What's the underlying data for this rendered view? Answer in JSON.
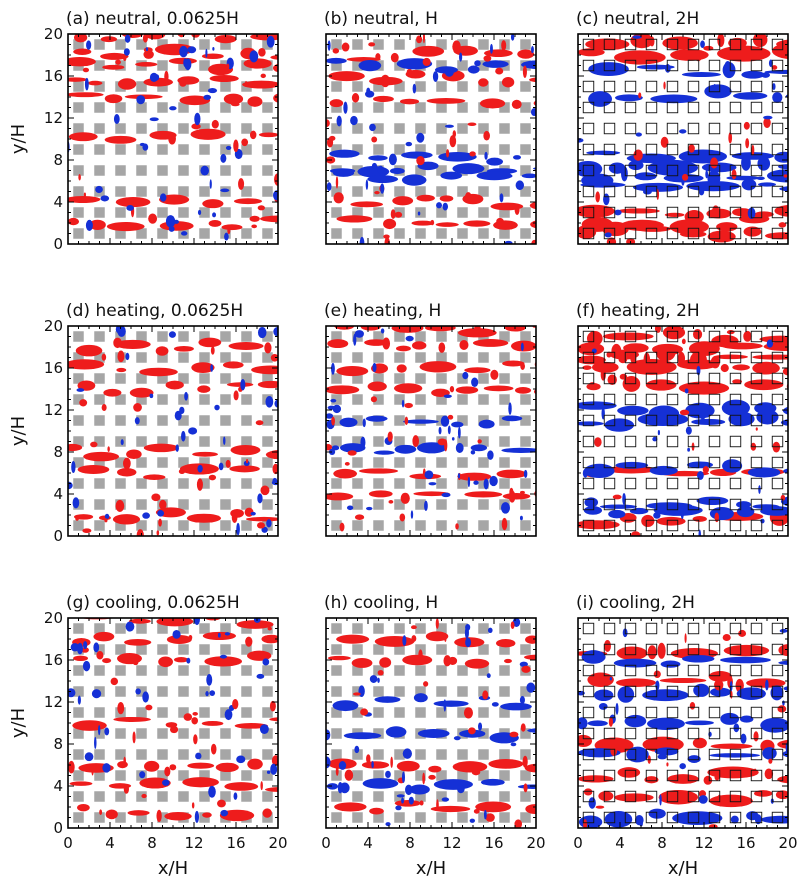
{
  "figure": {
    "colors": {
      "positive_structures": "#ee1c1c",
      "negative_structures": "#1530d6",
      "buildings_filled": "#a6a6a6",
      "buildings_outline": "#111111"
    }
  },
  "chart_data": [
    {
      "type": "heatmap",
      "title": "(a) neutral, 0.0625H",
      "xlabel": "",
      "ylabel": "y/H",
      "xlim": [
        0,
        20
      ],
      "ylim": [
        0,
        20
      ],
      "xticks": [],
      "yticks": [
        "0",
        "4",
        "8",
        "12",
        "16",
        "20"
      ],
      "building_style": "filled",
      "red_bands_y": [
        19.8,
        18.2,
        17,
        15.4,
        13.9,
        10,
        4,
        2
      ],
      "blue_bands_y": [],
      "grid": false
    },
    {
      "type": "heatmap",
      "title": "(b) neutral, H",
      "xlabel": "",
      "ylabel": "",
      "xlim": [
        0,
        20
      ],
      "ylim": [
        0,
        20
      ],
      "xticks": [],
      "yticks": [],
      "building_style": "filled",
      "red_bands_y": [
        18,
        15.8,
        13.5,
        4,
        2
      ],
      "blue_bands_y": [
        17,
        8.2,
        7,
        6.5
      ],
      "grid": false
    },
    {
      "type": "heatmap",
      "title": "(c) neutral, 2H",
      "xlabel": "",
      "ylabel": "",
      "xlim": [
        0,
        20
      ],
      "ylim": [
        0,
        20
      ],
      "xticks": [],
      "yticks": [],
      "building_style": "outline",
      "red_bands_y": [
        19,
        18,
        3,
        2,
        1
      ],
      "blue_bands_y": [
        16.5,
        14.2,
        8.3,
        7.5,
        6.5,
        5.5
      ],
      "grid": false
    },
    {
      "type": "heatmap",
      "title": "(d) heating, 0.0625H",
      "xlabel": "",
      "ylabel": "y/H",
      "xlim": [
        0,
        20
      ],
      "ylim": [
        0,
        20
      ],
      "xticks": [],
      "yticks": [
        "0",
        "4",
        "8",
        "12",
        "16",
        "20"
      ],
      "building_style": "filled",
      "red_bands_y": [
        18,
        16,
        14,
        8,
        6,
        2
      ],
      "blue_bands_y": [],
      "grid": false
    },
    {
      "type": "heatmap",
      "title": "(e) heating, H",
      "xlabel": "",
      "ylabel": "",
      "xlim": [
        0,
        20
      ],
      "ylim": [
        0,
        20
      ],
      "xticks": [],
      "yticks": [],
      "building_style": "filled",
      "red_bands_y": [
        19.8,
        18,
        16,
        14,
        6,
        3.8
      ],
      "blue_bands_y": [
        11,
        8
      ],
      "grid": false
    },
    {
      "type": "heatmap",
      "title": "(f) heating, 2H",
      "xlabel": "",
      "ylabel": "",
      "xlim": [
        0,
        20
      ],
      "ylim": [
        0,
        20
      ],
      "xticks": [],
      "yticks": [],
      "building_style": "outline",
      "red_bands_y": [
        19,
        18,
        17,
        16,
        14.5,
        6,
        1.5
      ],
      "blue_bands_y": [
        12,
        11,
        6.5,
        3,
        2
      ],
      "grid": false
    },
    {
      "type": "heatmap",
      "title": "(g) cooling, 0.0625H",
      "xlabel": "x/H",
      "ylabel": "y/H",
      "xlim": [
        0,
        20
      ],
      "ylim": [
        0,
        20
      ],
      "xticks": [
        "0",
        "4",
        "8",
        "12",
        "16",
        "20"
      ],
      "yticks": [
        "0",
        "4",
        "8",
        "12",
        "16",
        "20"
      ],
      "building_style": "filled",
      "red_bands_y": [
        19.8,
        18,
        16,
        10,
        6,
        4,
        1.5
      ],
      "blue_bands_y": [],
      "grid": false
    },
    {
      "type": "heatmap",
      "title": "(h) cooling, H",
      "xlabel": "x/H",
      "ylabel": "",
      "xlim": [
        0,
        20
      ],
      "ylim": [
        0,
        20
      ],
      "xticks": [
        "0",
        "4",
        "8",
        "12",
        "16",
        "20"
      ],
      "yticks": [],
      "building_style": "filled",
      "red_bands_y": [
        18,
        16,
        6,
        2
      ],
      "blue_bands_y": [
        12,
        9,
        4
      ],
      "grid": false
    },
    {
      "type": "heatmap",
      "title": "(i) cooling, 2H",
      "xlabel": "x/H",
      "ylabel": "",
      "xlim": [
        0,
        20
      ],
      "ylim": [
        0,
        20
      ],
      "xticks": [
        "0",
        "4",
        "8",
        "12",
        "16",
        "20"
      ],
      "yticks": [],
      "building_style": "outline",
      "red_bands_y": [
        17,
        14,
        8,
        5,
        3
      ],
      "blue_bands_y": [
        16,
        13,
        10,
        7,
        1
      ],
      "grid": false
    }
  ]
}
